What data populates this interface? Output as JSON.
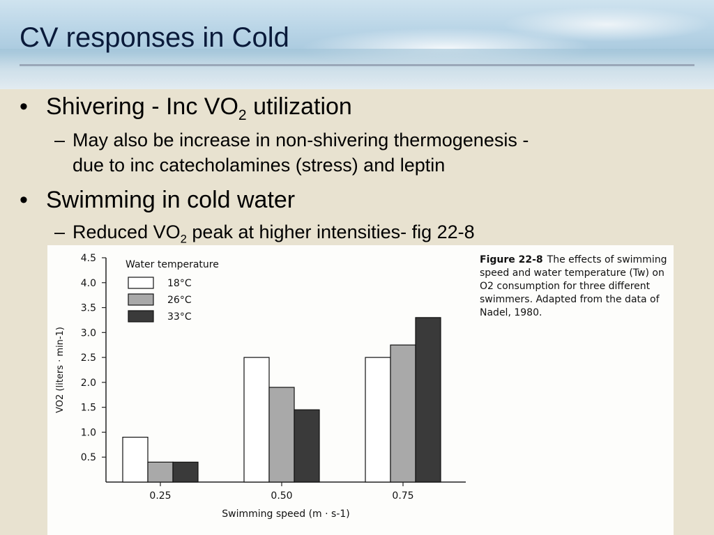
{
  "slide": {
    "title": "CV responses in Cold",
    "bullets": [
      {
        "level": 1,
        "text": "Shivering - Inc VO",
        "sub": "2",
        "tail": " utilization"
      },
      {
        "level": 2,
        "text": "May also be increase in non-shivering thermogenesis -"
      },
      {
        "level": 2,
        "text": "due to inc catecholamines (stress) and leptin"
      },
      {
        "level": 1,
        "text": "Swimming in cold water"
      },
      {
        "level": 2,
        "text": "Reduced VO",
        "sub": "2",
        "tail": " peak  at higher intensities- fig 22-8"
      }
    ]
  },
  "figure": {
    "caption_label": "Figure 22-8",
    "caption_text": "The effects of swimming speed and water temperature (Tw) on O2 consumption for three different swimmers. Adapted from the data of Nadel, 1980."
  },
  "chart_data": {
    "type": "bar",
    "xlabel": "Swimming speed (m · s-1)",
    "ylabel": "VO2 (liters · min-1)",
    "legend_title": "Water temperature",
    "legend_position": "top-left",
    "categories": [
      "0.25",
      "0.50",
      "0.75"
    ],
    "ylim": [
      0,
      4.5
    ],
    "yticks": [
      "0.5",
      "1.0",
      "1.5",
      "2.0",
      "2.5",
      "3.0",
      "3.5",
      "4.0",
      "4.5"
    ],
    "series": [
      {
        "name": "18°C",
        "values": [
          0.9,
          2.5,
          2.5
        ],
        "color": "#ffffff"
      },
      {
        "name": "26°C",
        "values": [
          0.4,
          1.9,
          2.75
        ],
        "color": "#a9a9a9"
      },
      {
        "name": "33°C",
        "values": [
          0.4,
          1.45,
          3.3
        ],
        "color": "#3a3a3a"
      }
    ]
  }
}
